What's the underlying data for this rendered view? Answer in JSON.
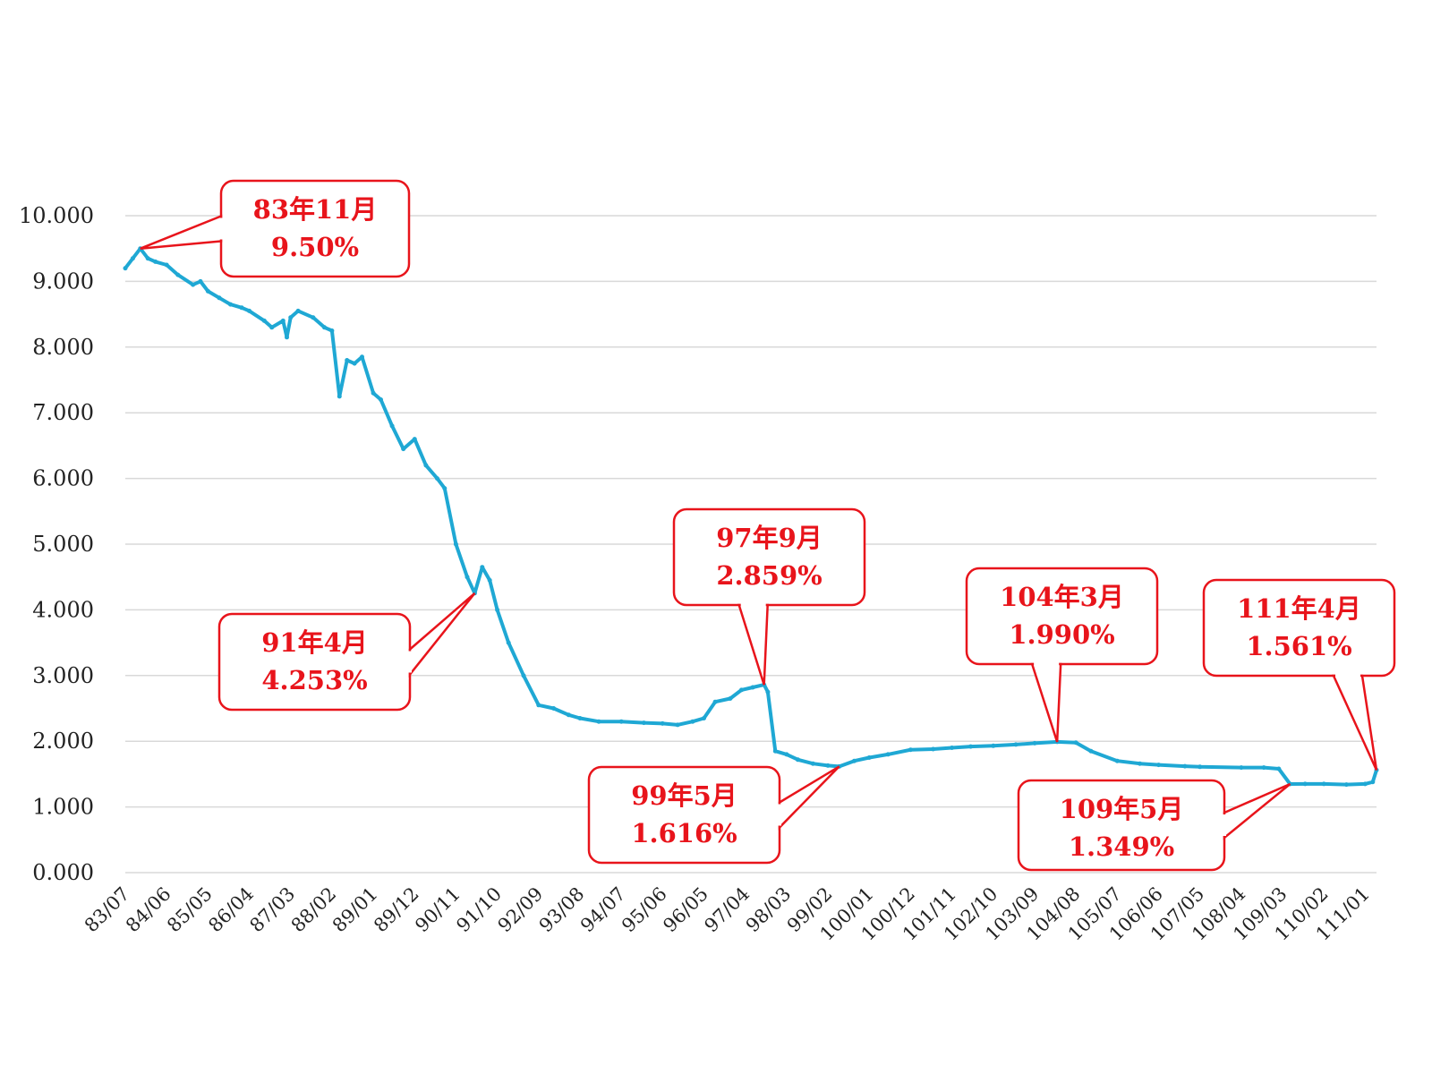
{
  "chart_data": {
    "type": "line",
    "title": "",
    "xlabel": "",
    "ylabel": "",
    "ylim": [
      0,
      10
    ],
    "grid": true,
    "legend": "none",
    "colors": {
      "series": "#1fa8d4",
      "callout": "#e8141b",
      "grid": "#d9d9d9"
    },
    "y_ticks": [
      "0.000",
      "1.000",
      "2.000",
      "3.000",
      "4.000",
      "5.000",
      "6.000",
      "7.000",
      "8.000",
      "9.000",
      "10.000"
    ],
    "x_ticks": [
      "83/07",
      "84/06",
      "85/05",
      "86/04",
      "87/03",
      "88/02",
      "89/01",
      "89/12",
      "90/11",
      "91/10",
      "92/09",
      "93/08",
      "94/07",
      "95/06",
      "96/05",
      "97/04",
      "98/03",
      "99/02",
      "100/01",
      "100/12",
      "101/11",
      "102/10",
      "103/09",
      "104/08",
      "105/07",
      "106/06",
      "107/05",
      "108/04",
      "109/03",
      "110/02",
      "111/01"
    ],
    "series": [
      {
        "points": [
          [
            "83/07",
            9.2
          ],
          [
            "83/09",
            9.35
          ],
          [
            "83/11",
            9.5
          ],
          [
            "84/01",
            9.35
          ],
          [
            "84/03",
            9.3
          ],
          [
            "84/06",
            9.25
          ],
          [
            "84/09",
            9.1
          ],
          [
            "85/01",
            8.95
          ],
          [
            "85/03",
            9.0
          ],
          [
            "85/05",
            8.85
          ],
          [
            "85/08",
            8.75
          ],
          [
            "85/11",
            8.65
          ],
          [
            "86/02",
            8.6
          ],
          [
            "86/04",
            8.55
          ],
          [
            "86/08",
            8.4
          ],
          [
            "86/10",
            8.3
          ],
          [
            "87/01",
            8.4
          ],
          [
            "87/02",
            8.15
          ],
          [
            "87/03",
            8.45
          ],
          [
            "87/05",
            8.55
          ],
          [
            "87/09",
            8.45
          ],
          [
            "87/12",
            8.3
          ],
          [
            "88/02",
            8.25
          ],
          [
            "88/04",
            7.25
          ],
          [
            "88/06",
            7.8
          ],
          [
            "88/08",
            7.75
          ],
          [
            "88/10",
            7.85
          ],
          [
            "89/01",
            7.3
          ],
          [
            "89/03",
            7.2
          ],
          [
            "89/06",
            6.8
          ],
          [
            "89/09",
            6.45
          ],
          [
            "89/12",
            6.6
          ],
          [
            "90/03",
            6.2
          ],
          [
            "90/06",
            6.0
          ],
          [
            "90/08",
            5.85
          ],
          [
            "90/11",
            5.0
          ],
          [
            "91/02",
            4.5
          ],
          [
            "91/04",
            4.253
          ],
          [
            "91/06",
            4.65
          ],
          [
            "91/08",
            4.45
          ],
          [
            "91/10",
            4.0
          ],
          [
            "92/01",
            3.5
          ],
          [
            "92/05",
            3.0
          ],
          [
            "92/09",
            2.55
          ],
          [
            "93/01",
            2.5
          ],
          [
            "93/05",
            2.4
          ],
          [
            "93/08",
            2.35
          ],
          [
            "94/01",
            2.3
          ],
          [
            "94/07",
            2.3
          ],
          [
            "95/01",
            2.28
          ],
          [
            "95/06",
            2.27
          ],
          [
            "95/10",
            2.25
          ],
          [
            "96/02",
            2.3
          ],
          [
            "96/05",
            2.35
          ],
          [
            "96/08",
            2.6
          ],
          [
            "96/12",
            2.65
          ],
          [
            "97/03",
            2.78
          ],
          [
            "97/06",
            2.82
          ],
          [
            "97/09",
            2.859
          ],
          [
            "97/10",
            2.75
          ],
          [
            "97/12",
            1.85
          ],
          [
            "98/03",
            1.8
          ],
          [
            "98/06",
            1.72
          ],
          [
            "98/10",
            1.66
          ],
          [
            "99/02",
            1.63
          ],
          [
            "99/05",
            1.616
          ],
          [
            "99/09",
            1.7
          ],
          [
            "100/01",
            1.75
          ],
          [
            "100/06",
            1.8
          ],
          [
            "100/12",
            1.87
          ],
          [
            "101/06",
            1.88
          ],
          [
            "101/11",
            1.9
          ],
          [
            "102/04",
            1.92
          ],
          [
            "102/10",
            1.93
          ],
          [
            "103/04",
            1.95
          ],
          [
            "103/09",
            1.97
          ],
          [
            "104/03",
            1.99
          ],
          [
            "104/08",
            1.98
          ],
          [
            "104/12",
            1.85
          ],
          [
            "105/07",
            1.7
          ],
          [
            "106/01",
            1.66
          ],
          [
            "106/06",
            1.64
          ],
          [
            "107/01",
            1.62
          ],
          [
            "107/05",
            1.61
          ],
          [
            "108/04",
            1.6
          ],
          [
            "108/10",
            1.6
          ],
          [
            "109/02",
            1.58
          ],
          [
            "109/05",
            1.349
          ],
          [
            "109/09",
            1.35
          ],
          [
            "110/02",
            1.35
          ],
          [
            "110/08",
            1.34
          ],
          [
            "111/01",
            1.35
          ],
          [
            "111/03",
            1.38
          ],
          [
            "111/04",
            1.561
          ]
        ]
      }
    ],
    "annotations": [
      {
        "line1": "83年11月",
        "line2": "9.50%",
        "x": "83/11",
        "y": 9.5
      },
      {
        "line1": "91年4月",
        "line2": "4.253%",
        "x": "91/04",
        "y": 4.253
      },
      {
        "line1": "97年9月",
        "line2": "2.859%",
        "x": "97/09",
        "y": 2.859
      },
      {
        "line1": "99年5月",
        "line2": "1.616%",
        "x": "99/05",
        "y": 1.616
      },
      {
        "line1": "104年3月",
        "line2": "1.990%",
        "x": "104/03",
        "y": 1.99
      },
      {
        "line1": "109年5月",
        "line2": "1.349%",
        "x": "109/05",
        "y": 1.349
      },
      {
        "line1": "111年4月",
        "line2": "1.561%",
        "x": "111/04",
        "y": 1.561
      }
    ]
  }
}
